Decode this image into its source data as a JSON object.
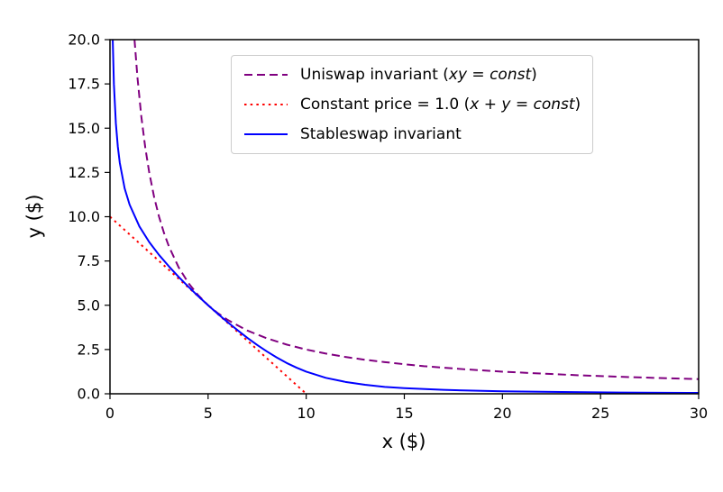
{
  "figure": {
    "background": "#ffffff",
    "text_color": "#000000",
    "spine_color": "#000000"
  },
  "chart_data": {
    "type": "line",
    "title": "",
    "xlabel": "x ($)",
    "ylabel": "y ($)",
    "xlim": [
      0,
      30
    ],
    "ylim": [
      0,
      20
    ],
    "xticks": [
      0,
      5,
      10,
      15,
      20,
      25,
      30
    ],
    "xtick_labels": [
      "0",
      "5",
      "10",
      "15",
      "20",
      "25",
      "30"
    ],
    "yticks": [
      0,
      2.5,
      5,
      7.5,
      10,
      12.5,
      15,
      17.5,
      20
    ],
    "ytick_labels": [
      "0.0",
      "2.5",
      "5.0",
      "7.5",
      "10.0",
      "12.5",
      "15.0",
      "17.5",
      "20.0"
    ],
    "grid": false,
    "legend": {
      "position": "upper-center",
      "items": [
        {
          "style": "dashed",
          "color": "#800080",
          "parts": [
            {
              "text": "Uniswap invariant (",
              "italic": false
            },
            {
              "text": "xy = const",
              "italic": true
            },
            {
              "text": ")",
              "italic": false
            }
          ]
        },
        {
          "style": "dotted",
          "color": "#ff0000",
          "parts": [
            {
              "text": "Constant price = 1.0 (",
              "italic": false
            },
            {
              "text": "x + y = const",
              "italic": true
            },
            {
              "text": ")",
              "italic": false
            }
          ]
        },
        {
          "style": "solid",
          "color": "#0000ff",
          "parts": [
            {
              "text": "Stableswap invariant",
              "italic": false
            }
          ]
        }
      ]
    },
    "series": [
      {
        "name": "Uniswap invariant (xy = const)",
        "color": "#800080",
        "style": "dashed",
        "equation": "x*y = 25",
        "points": [
          [
            1.25,
            20
          ],
          [
            1.4,
            17.86
          ],
          [
            1.6,
            15.63
          ],
          [
            1.8,
            13.89
          ],
          [
            2,
            12.5
          ],
          [
            2.25,
            11.11
          ],
          [
            2.5,
            10
          ],
          [
            2.75,
            9.09
          ],
          [
            3,
            8.33
          ],
          [
            3.5,
            7.14
          ],
          [
            4,
            6.25
          ],
          [
            4.5,
            5.56
          ],
          [
            5,
            5
          ],
          [
            5.5,
            4.55
          ],
          [
            6,
            4.17
          ],
          [
            7,
            3.57
          ],
          [
            8,
            3.13
          ],
          [
            9,
            2.78
          ],
          [
            10,
            2.5
          ],
          [
            11,
            2.27
          ],
          [
            12,
            2.08
          ],
          [
            13,
            1.92
          ],
          [
            14,
            1.79
          ],
          [
            15,
            1.67
          ],
          [
            16,
            1.56
          ],
          [
            18,
            1.39
          ],
          [
            20,
            1.25
          ],
          [
            22,
            1.14
          ],
          [
            24,
            1.04
          ],
          [
            26,
            0.96
          ],
          [
            28,
            0.89
          ],
          [
            30,
            0.83
          ]
        ]
      },
      {
        "name": "Constant price = 1.0 (x + y = const)",
        "color": "#ff0000",
        "style": "dotted",
        "equation": "x + y = 10",
        "points": [
          [
            0,
            10
          ],
          [
            10,
            0
          ]
        ]
      },
      {
        "name": "Stableswap invariant",
        "color": "#0000ff",
        "style": "solid",
        "equation": "stableswap A=2, D=10",
        "points": [
          [
            0.14,
            20
          ],
          [
            0.2,
            17.49
          ],
          [
            0.3,
            15.27
          ],
          [
            0.4,
            13.95
          ],
          [
            0.5,
            13.04
          ],
          [
            0.75,
            11.59
          ],
          [
            1,
            10.68
          ],
          [
            1.5,
            9.45
          ],
          [
            2,
            8.57
          ],
          [
            2.5,
            7.84
          ],
          [
            3,
            7.2
          ],
          [
            3.5,
            6.6
          ],
          [
            4,
            6.04
          ],
          [
            4.5,
            5.51
          ],
          [
            5,
            5
          ],
          [
            5.5,
            4.51
          ],
          [
            6,
            4.04
          ],
          [
            6.5,
            3.59
          ],
          [
            7,
            3.16
          ],
          [
            7.5,
            2.76
          ],
          [
            8,
            2.39
          ],
          [
            8.5,
            2.05
          ],
          [
            9,
            1.74
          ],
          [
            9.5,
            1.48
          ],
          [
            10,
            1.25
          ],
          [
            11,
            0.9
          ],
          [
            12,
            0.67
          ],
          [
            13,
            0.51
          ],
          [
            14,
            0.39
          ],
          [
            15,
            0.32
          ],
          [
            17,
            0.22
          ],
          [
            20,
            0.14
          ],
          [
            23,
            0.1
          ],
          [
            26,
            0.07
          ],
          [
            30,
            0.05
          ]
        ]
      }
    ]
  }
}
